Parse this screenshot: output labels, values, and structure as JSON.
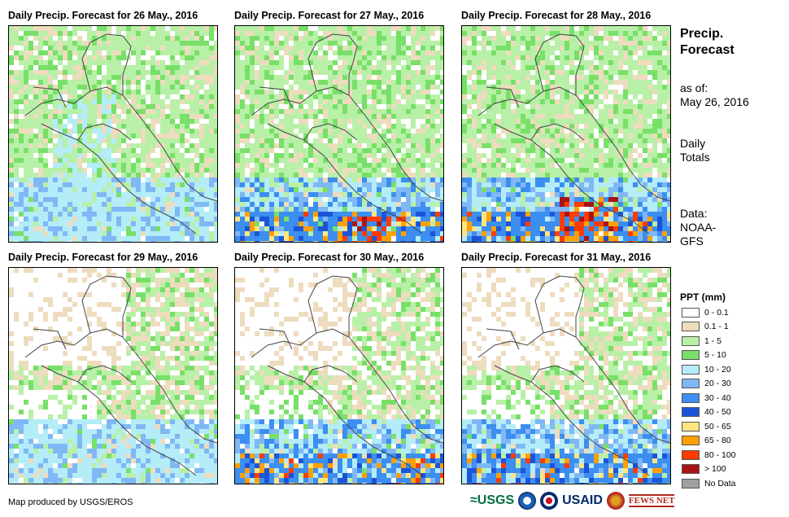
{
  "panels": [
    {
      "title": "Daily Precip. Forecast for 26 May., 2016",
      "pattern": "wet-pacific-light"
    },
    {
      "title": "Daily Precip. Forecast for 27 May., 2016",
      "pattern": "wet-pacific-heavy"
    },
    {
      "title": "Daily Precip. Forecast for 28 May., 2016",
      "pattern": "wet-panama-heavy"
    },
    {
      "title": "Daily Precip. Forecast for 29 May., 2016",
      "pattern": "dry-mostly"
    },
    {
      "title": "Daily Precip. Forecast for 30 May., 2016",
      "pattern": "dry-south-heavy"
    },
    {
      "title": "Daily Precip. Forecast for 31 May., 2016",
      "pattern": "dry-south-band"
    }
  ],
  "side": {
    "title_line1": "Precip.",
    "title_line2": "Forecast",
    "asof_label": "as of:",
    "asof_date": "May 26, 2016",
    "daily_line1": "Daily",
    "daily_line2": "Totals",
    "data_line1": "Data:",
    "data_line2": "NOAA-",
    "data_line3": "GFS"
  },
  "legend": {
    "title": "PPT (mm)",
    "items": [
      {
        "label": "0 - 0.1",
        "color": "#ffffff"
      },
      {
        "label": "0.1 - 1",
        "color": "#eedcbe"
      },
      {
        "label": "1 - 5",
        "color": "#b8f0a8"
      },
      {
        "label": "5 - 10",
        "color": "#78e068"
      },
      {
        "label": "10 - 20",
        "color": "#b4ecf8"
      },
      {
        "label": "20 - 30",
        "color": "#7fb8f5"
      },
      {
        "label": "30 - 40",
        "color": "#3c8ef0"
      },
      {
        "label": "40 - 50",
        "color": "#1c54d8"
      },
      {
        "label": "50 - 65",
        "color": "#ffe680"
      },
      {
        "label": "65 - 80",
        "color": "#ffa000"
      },
      {
        "label": "80 - 100",
        "color": "#ff3c00"
      },
      {
        "label": "> 100",
        "color": "#a81414"
      },
      {
        "label": "No Data",
        "color": "#a0a0a0"
      }
    ]
  },
  "footer": {
    "text": "Map produced by USGS/EROS"
  },
  "logos": {
    "usgs": "≈USGS",
    "usaid": "USAID",
    "fews": "FEWS NET"
  }
}
